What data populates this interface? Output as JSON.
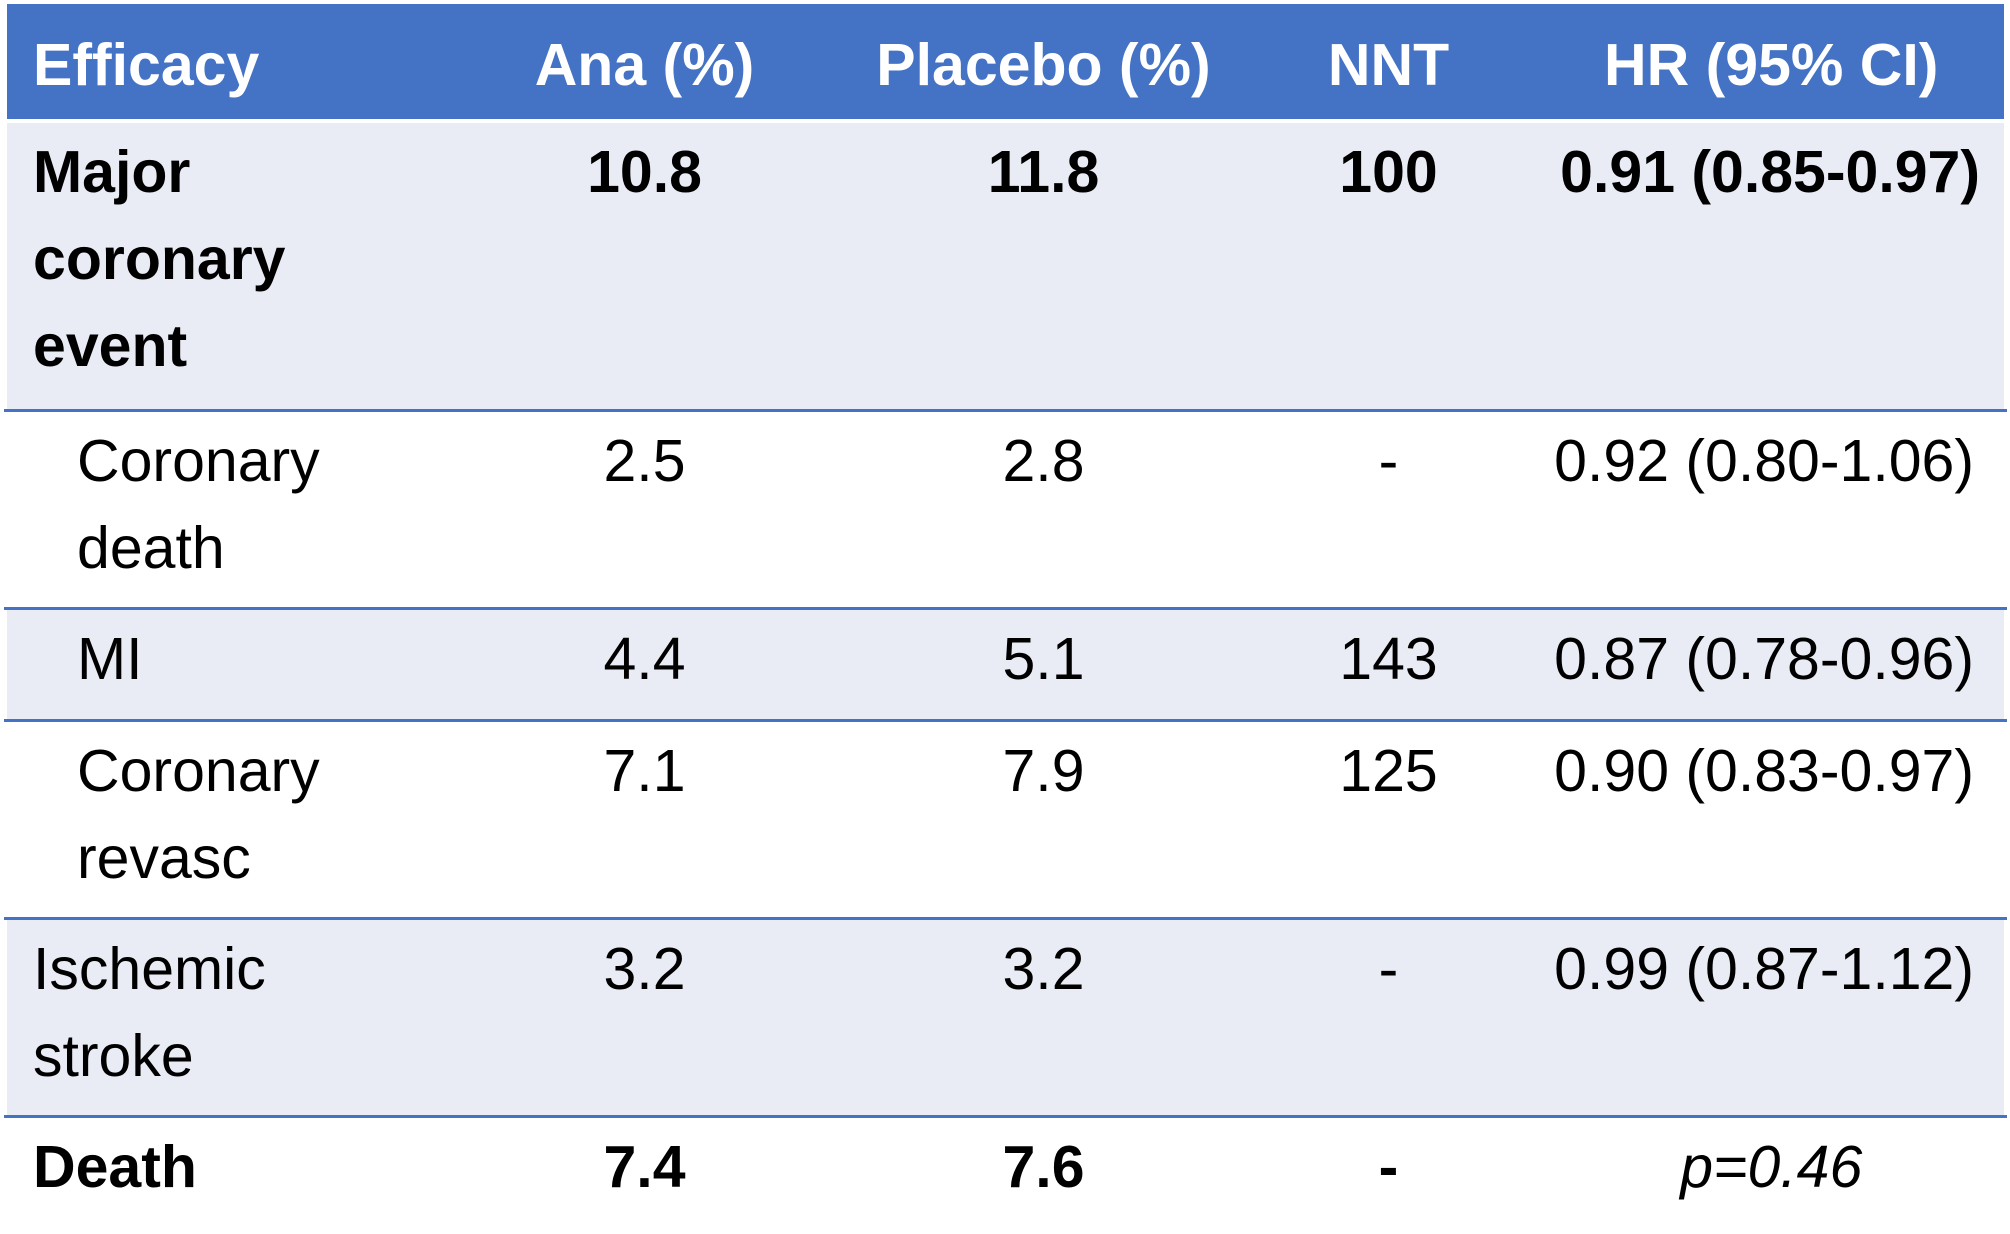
{
  "table": {
    "headers": [
      "Efficacy",
      "Ana (%)",
      "Placebo (%)",
      "NNT",
      "HR (95% CI)"
    ],
    "rows": [
      {
        "label": "Major coronary event",
        "ana": "10.8",
        "placebo": "11.8",
        "nnt": "100",
        "hr": "0.91 (0.85-0.97)",
        "bold": true,
        "indent": false
      },
      {
        "label": "Coronary death",
        "ana": "2.5",
        "placebo": "2.8",
        "nnt": "-",
        "hr": "0.92 (0.80-1.06)",
        "bold": false,
        "indent": true
      },
      {
        "label": "MI",
        "ana": "4.4",
        "placebo": "5.1",
        "nnt": "143",
        "hr": "0.87 (0.78-0.96)",
        "bold": false,
        "indent": true
      },
      {
        "label": "Coronary revasc",
        "ana": "7.1",
        "placebo": "7.9",
        "nnt": "125",
        "hr": "0.90 (0.83-0.97)",
        "bold": false,
        "indent": true
      },
      {
        "label": "Ischemic stroke",
        "ana": "3.2",
        "placebo": "3.2",
        "nnt": "-",
        "hr": "0.99 (0.87-1.12)",
        "bold": false,
        "indent": false
      },
      {
        "label": "Death",
        "ana": "7.4",
        "placebo": "7.6",
        "nnt": "-",
        "hr": "p=0.46",
        "bold": true,
        "indent": false
      }
    ]
  },
  "colors": {
    "header_bg": "#4472c4",
    "header_text": "#ffffff",
    "row_shade": "#e9ebf5",
    "row_plain": "#ffffff",
    "row_divider": "#4472c4"
  }
}
